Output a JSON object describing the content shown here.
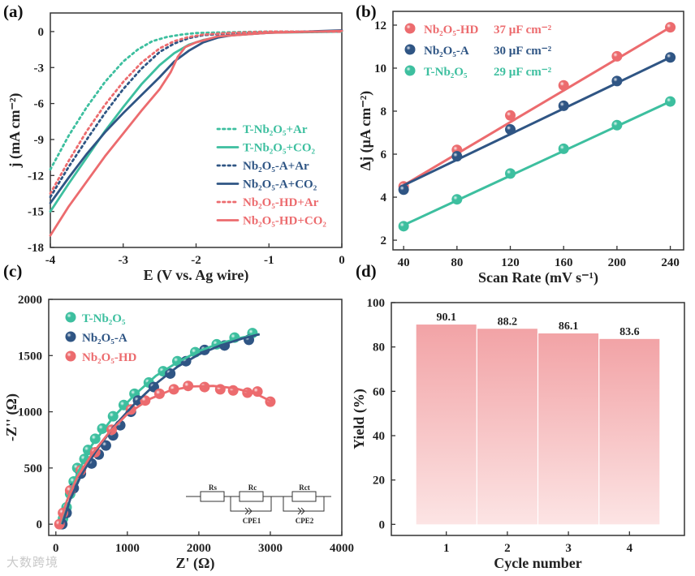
{
  "panel_labels": [
    "(a)",
    "(b)",
    "(c)",
    "(d)"
  ],
  "watermark": "大数跨境",
  "colors": {
    "teal": "#3dbf9f",
    "navy": "#2f5584",
    "red": "#ec6b6e",
    "bar_top": "#f2a3a6",
    "bar_bottom": "#fce4e4"
  },
  "chart_data": [
    {
      "type": "line",
      "xlabel": "E (V vs. Ag wire)",
      "ylabel": "j (mA cm⁻²)",
      "xlim": [
        -4,
        0
      ],
      "ylim": [
        -18,
        1.55
      ],
      "xticks": [
        -4,
        -3,
        -2,
        -1,
        0
      ],
      "yticks": [
        0,
        -3,
        -6,
        -9,
        -12,
        -15,
        -18
      ],
      "legend_position": "bottom-right",
      "series": [
        {
          "name": "T-Nb₂O₅+Ar",
          "color": "#3dbf9f",
          "style": "dotted",
          "x": [
            -4,
            -3.75,
            -3.5,
            -3.25,
            -3,
            -2.8,
            -2.6,
            -2.4,
            -2.2,
            -2,
            -1.5,
            -1,
            0
          ],
          "y": [
            -11.5,
            -8.7,
            -6.3,
            -4.2,
            -2.5,
            -1.5,
            -0.8,
            -0.45,
            -0.25,
            -0.12,
            -0.05,
            0,
            0
          ]
        },
        {
          "name": "T-Nb₂O₅+CO₂",
          "color": "#3dbf9f",
          "style": "solid",
          "x": [
            -4,
            -3.75,
            -3.5,
            -3.25,
            -3,
            -2.75,
            -2.5,
            -2.3,
            -2.1,
            -1.9,
            -1.6,
            -1,
            0
          ],
          "y": [
            -15,
            -12.7,
            -10.5,
            -8.3,
            -6.3,
            -4.4,
            -2.8,
            -1.8,
            -1.1,
            -0.7,
            -0.35,
            -0.1,
            0
          ]
        },
        {
          "name": "Nb₂O₅-A+Ar",
          "color": "#2f5584",
          "style": "dotted",
          "x": [
            -4,
            -3.75,
            -3.5,
            -3.25,
            -3,
            -2.75,
            -2.5,
            -2.3,
            -2.1,
            -1.9,
            -1.5,
            -1,
            0
          ],
          "y": [
            -13.8,
            -11.3,
            -9,
            -6.8,
            -4.8,
            -3.1,
            -1.7,
            -1,
            -0.55,
            -0.3,
            -0.15,
            -0.05,
            0
          ]
        },
        {
          "name": "Nb₂O₅-A+CO₂",
          "color": "#2f5584",
          "style": "solid",
          "x": [
            -4,
            -3.75,
            -3.5,
            -3.25,
            -3,
            -2.75,
            -2.5,
            -2.3,
            -2.1,
            -1.9,
            -1.7,
            -1.5,
            -1,
            0
          ],
          "y": [
            -14.3,
            -12.2,
            -10.2,
            -8.4,
            -6.8,
            -5.3,
            -3.8,
            -2.5,
            -1.6,
            -0.9,
            -0.5,
            -0.3,
            -0.1,
            0.1
          ]
        },
        {
          "name": "Nb₂O₅-HD+Ar",
          "color": "#ec6b6e",
          "style": "dotted",
          "x": [
            -4,
            -3.75,
            -3.5,
            -3.25,
            -3,
            -2.75,
            -2.5,
            -2.3,
            -2.1,
            -1.9,
            -1.5,
            -1,
            0
          ],
          "y": [
            -13.5,
            -10.8,
            -8.3,
            -6.1,
            -4.2,
            -2.6,
            -1.4,
            -0.8,
            -0.45,
            -0.25,
            -0.1,
            0,
            0
          ]
        },
        {
          "name": "Nb₂O₅-HD+CO₂",
          "color": "#ec6b6e",
          "style": "solid",
          "x": [
            -4,
            -3.75,
            -3.5,
            -3.25,
            -3,
            -2.75,
            -2.5,
            -2.35,
            -2.25,
            -2.15,
            -2,
            -1.7,
            -1,
            0
          ],
          "y": [
            -17,
            -14.6,
            -12.5,
            -10.4,
            -8.5,
            -6.6,
            -4.8,
            -3.4,
            -2.1,
            -1.3,
            -0.9,
            -0.4,
            -0.1,
            0.05
          ]
        }
      ]
    },
    {
      "type": "scatter",
      "xlabel": "Scan Rate (mV s⁻¹)",
      "ylabel": "Δj (μA cm⁻²)",
      "xlim": [
        32,
        250
      ],
      "ylim": [
        1.55,
        12.64
      ],
      "xticks": [
        40,
        80,
        120,
        160,
        200,
        240
      ],
      "yticks": [
        2,
        4,
        6,
        8,
        10,
        12
      ],
      "legend_position": "top-left",
      "x": [
        40,
        80,
        120,
        160,
        200,
        240
      ],
      "series": [
        {
          "name": "Nb₂O₅-HD",
          "capacitance": "37 μF cm⁻²",
          "color": "#ec6b6e",
          "values": [
            4.5,
            6.2,
            7.8,
            9.2,
            10.55,
            11.9
          ],
          "fit": [
            4.55,
            11.9
          ]
        },
        {
          "name": "Nb₂O₅-A",
          "capacitance": "30 μF cm⁻²",
          "color": "#2f5584",
          "values": [
            4.35,
            5.9,
            7.15,
            8.25,
            9.4,
            10.5
          ],
          "fit": [
            4.55,
            10.5
          ]
        },
        {
          "name": "T-Nb₂O₅",
          "capacitance": "29 μF cm⁻²",
          "color": "#3dbf9f",
          "values": [
            2.65,
            3.9,
            5.1,
            6.25,
            7.35,
            8.45
          ],
          "fit": [
            2.7,
            8.45
          ]
        }
      ]
    },
    {
      "type": "scatter",
      "xlabel": "Z' (Ω)",
      "ylabel": "-Z'' (Ω)",
      "xlim": [
        -100,
        4000
      ],
      "ylim": [
        -100,
        2000
      ],
      "xticks": [
        0,
        1000,
        2000,
        3000,
        4000
      ],
      "yticks": [
        0,
        500,
        1000,
        1500,
        2000
      ],
      "legend_position": "top-left",
      "inset_labels": [
        "Rs",
        "Rc",
        "Rct",
        "CPE1",
        "CPE2"
      ],
      "series": [
        {
          "name": "T-Nb₂O₅",
          "color": "#3dbf9f",
          "x": [
            60,
            100,
            150,
            200,
            250,
            300,
            400,
            450,
            550,
            650,
            800,
            950,
            1100,
            1300,
            1500,
            1700,
            1950,
            2250,
            2500,
            2750
          ],
          "y": [
            0,
            50,
            150,
            270,
            380,
            500,
            580,
            660,
            760,
            850,
            960,
            1060,
            1160,
            1260,
            1360,
            1450,
            1530,
            1600,
            1660,
            1700
          ],
          "fit_x": [
            60,
            150,
            300,
            500,
            800,
            1100,
            1400,
            1700,
            2000,
            2300,
            2600,
            2850
          ],
          "fit_y": [
            0,
            200,
            450,
            700,
            950,
            1150,
            1320,
            1440,
            1540,
            1610,
            1660,
            1690
          ]
        },
        {
          "name": "Nb₂O₅-A",
          "color": "#2f5584",
          "x": [
            90,
            150,
            250,
            350,
            500,
            600,
            700,
            800,
            900,
            1050,
            1150,
            1370,
            1600,
            1820,
            2080,
            2360,
            2700
          ],
          "y": [
            0,
            100,
            320,
            450,
            540,
            620,
            700,
            790,
            880,
            1000,
            1100,
            1220,
            1340,
            1450,
            1550,
            1590,
            1640
          ],
          "fit_x": [
            90,
            200,
            350,
            550,
            800,
            1100,
            1400,
            1700,
            2000,
            2300,
            2600,
            2850
          ],
          "fit_y": [
            0,
            220,
            430,
            640,
            860,
            1070,
            1250,
            1400,
            1510,
            1590,
            1650,
            1690
          ]
        },
        {
          "name": "Nb₂O₅-HD",
          "color": "#ec6b6e",
          "x": [
            50,
            100,
            200,
            350,
            550,
            780,
            1050,
            1250,
            1450,
            1650,
            1850,
            2080,
            2300,
            2480,
            2680,
            2820,
            3000
          ],
          "y": [
            0,
            100,
            300,
            480,
            640,
            840,
            1020,
            1100,
            1160,
            1200,
            1230,
            1220,
            1200,
            1190,
            1170,
            1180,
            1090
          ],
          "fit_x": [
            50,
            150,
            300,
            500,
            750,
            1000,
            1300,
            1600,
            1900,
            2200,
            2500,
            2800,
            3050
          ],
          "fit_y": [
            0,
            200,
            420,
            620,
            820,
            980,
            1110,
            1190,
            1225,
            1230,
            1210,
            1160,
            1080
          ]
        }
      ]
    },
    {
      "type": "bar",
      "xlabel": "Cycle number",
      "ylabel": "Yield (%)",
      "categories": [
        "1",
        "2",
        "3",
        "4"
      ],
      "values": [
        90.1,
        88.2,
        86.1,
        83.6
      ],
      "value_labels": [
        "90.1",
        "88.2",
        "86.1",
        "83.6"
      ],
      "xlim": [
        0.1,
        4.9
      ],
      "ylim": [
        -5,
        100
      ],
      "yticks": [
        0,
        20,
        40,
        60,
        80,
        100
      ]
    }
  ]
}
